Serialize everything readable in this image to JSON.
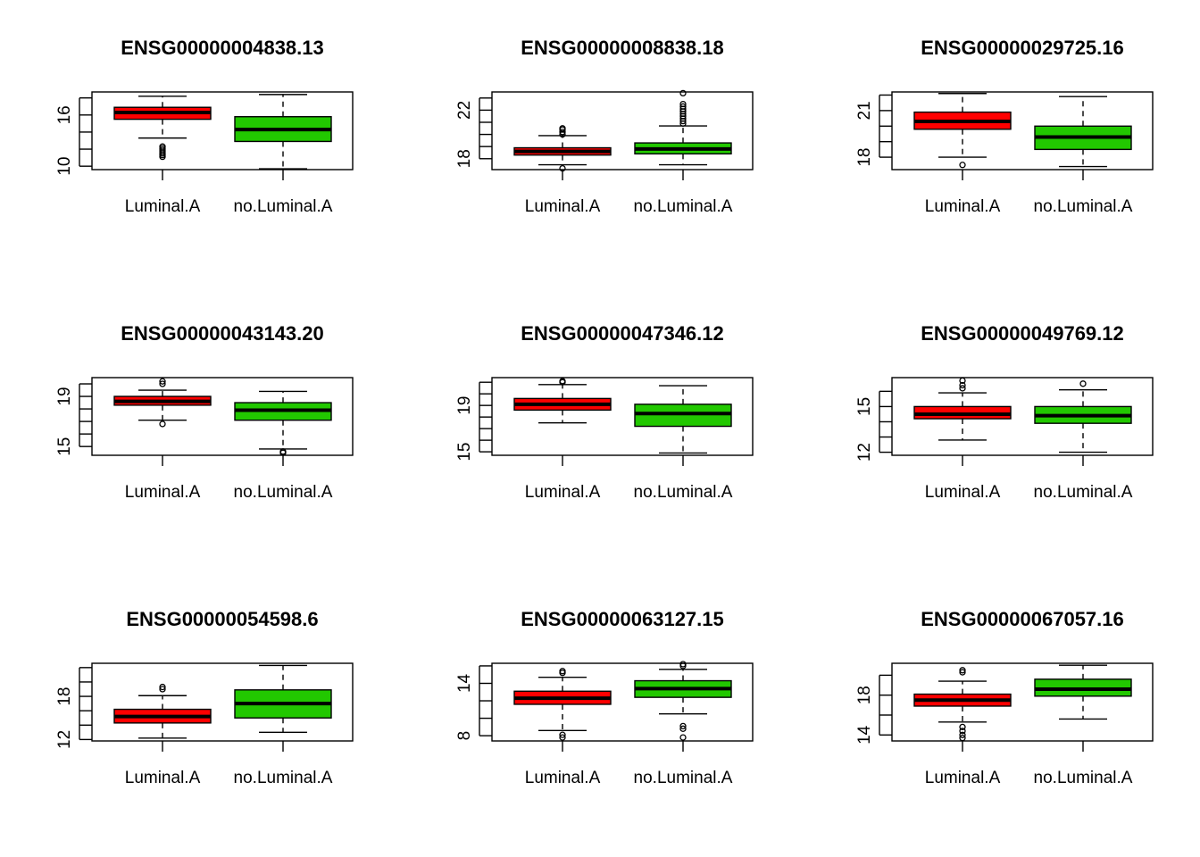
{
  "colors": {
    "Luminal.A": "#ff0000",
    "no.Luminal.A": "#22c800"
  },
  "chart_data": [
    {
      "type": "box",
      "title": "ENSG00000004838.13",
      "categories": [
        "Luminal.A",
        "no.Luminal.A"
      ],
      "yticks": [
        10,
        12,
        14,
        16,
        18
      ],
      "ytick_labels": [
        "10",
        "16"
      ],
      "ylim": [
        9.6,
        18.7
      ],
      "boxes": [
        {
          "name": "Luminal.A",
          "min": 13.3,
          "q1": 15.5,
          "median": 16.3,
          "q3": 16.9,
          "max": 18.2,
          "outliers": [
            11.1,
            11.3,
            11.5,
            11.7,
            11.9,
            12.1,
            12.3
          ]
        },
        {
          "name": "no.Luminal.A",
          "min": 9.7,
          "q1": 12.9,
          "median": 14.3,
          "q3": 15.8,
          "max": 18.4,
          "outliers": []
        }
      ]
    },
    {
      "type": "box",
      "title": "ENSG00000008838.18",
      "categories": [
        "Luminal.A",
        "no.Luminal.A"
      ],
      "yticks": [
        18,
        19,
        20,
        21,
        22,
        23
      ],
      "ytick_labels": [
        "18",
        "22"
      ],
      "ylim": [
        17.1,
        23.5
      ],
      "boxes": [
        {
          "name": "Luminal.A",
          "min": 17.5,
          "q1": 18.3,
          "median": 18.6,
          "q3": 18.9,
          "max": 19.9,
          "outliers": [
            17.2,
            20.0,
            20.2,
            20.4,
            20.5
          ]
        },
        {
          "name": "no.Luminal.A",
          "min": 17.5,
          "q1": 18.4,
          "median": 18.8,
          "q3": 19.3,
          "max": 20.7,
          "outliers": [
            20.9,
            21.1,
            21.3,
            21.5,
            21.7,
            21.9,
            22.1,
            22.3,
            22.5,
            23.4
          ]
        }
      ]
    },
    {
      "type": "box",
      "title": "ENSG00000029725.16",
      "categories": [
        "Luminal.A",
        "no.Luminal.A"
      ],
      "yticks": [
        18,
        19,
        20,
        21,
        22
      ],
      "ytick_labels": [
        "18",
        "21"
      ],
      "ylim": [
        17.2,
        22.2
      ],
      "boxes": [
        {
          "name": "Luminal.A",
          "min": 18.0,
          "q1": 19.8,
          "median": 20.3,
          "q3": 20.9,
          "max": 22.1,
          "outliers": [
            17.5
          ]
        },
        {
          "name": "no.Luminal.A",
          "min": 17.4,
          "q1": 18.5,
          "median": 19.3,
          "q3": 20.0,
          "max": 21.9,
          "outliers": []
        }
      ]
    },
    {
      "type": "box",
      "title": "ENSG00000043143.20",
      "categories": [
        "Luminal.A",
        "no.Luminal.A"
      ],
      "yticks": [
        15,
        16,
        17,
        18,
        19,
        20
      ],
      "ytick_labels": [
        "15",
        "19"
      ],
      "ylim": [
        14.3,
        20.5
      ],
      "boxes": [
        {
          "name": "Luminal.A",
          "min": 17.1,
          "q1": 18.3,
          "median": 18.6,
          "q3": 19.0,
          "max": 19.5,
          "outliers": [
            16.8,
            20.0,
            20.2
          ]
        },
        {
          "name": "no.Luminal.A",
          "min": 14.8,
          "q1": 17.1,
          "median": 17.9,
          "q3": 18.5,
          "max": 19.4,
          "outliers": [
            14.5,
            14.6
          ]
        }
      ]
    },
    {
      "type": "box",
      "title": "ENSG00000047346.12",
      "categories": [
        "Luminal.A",
        "no.Luminal.A"
      ],
      "yticks": [
        15,
        16,
        17,
        18,
        19,
        20,
        21
      ],
      "ytick_labels": [
        "15",
        "19"
      ],
      "ylim": [
        14.7,
        21.4
      ],
      "boxes": [
        {
          "name": "Luminal.A",
          "min": 17.5,
          "q1": 18.6,
          "median": 19.1,
          "q3": 19.6,
          "max": 20.8,
          "outliers": [
            21.0,
            21.1
          ]
        },
        {
          "name": "no.Luminal.A",
          "min": 14.9,
          "q1": 17.2,
          "median": 18.3,
          "q3": 19.1,
          "max": 20.7,
          "outliers": []
        }
      ]
    },
    {
      "type": "box",
      "title": "ENSG00000049769.12",
      "categories": [
        "Luminal.A",
        "no.Luminal.A"
      ],
      "yticks": [
        12,
        13,
        14,
        15,
        16
      ],
      "ytick_labels": [
        "12",
        "15"
      ],
      "ylim": [
        11.8,
        16.9
      ],
      "boxes": [
        {
          "name": "Luminal.A",
          "min": 12.8,
          "q1": 14.2,
          "median": 14.5,
          "q3": 15.0,
          "max": 15.9,
          "outliers": [
            16.2,
            16.4,
            16.7
          ]
        },
        {
          "name": "no.Luminal.A",
          "min": 12.0,
          "q1": 13.9,
          "median": 14.4,
          "q3": 15.0,
          "max": 16.1,
          "outliers": [
            16.5
          ]
        }
      ]
    },
    {
      "type": "box",
      "title": "ENSG00000054598.6",
      "categories": [
        "Luminal.A",
        "no.Luminal.A"
      ],
      "yticks": [
        12,
        14,
        16,
        18,
        20,
        22
      ],
      "ytick_labels": [
        "12",
        "18"
      ],
      "ylim": [
        11.8,
        22.6
      ],
      "boxes": [
        {
          "name": "Luminal.A",
          "min": 12.2,
          "q1": 14.3,
          "median": 15.2,
          "q3": 16.2,
          "max": 18.1,
          "outliers": [
            19.0,
            19.3
          ]
        },
        {
          "name": "no.Luminal.A",
          "min": 13.0,
          "q1": 15.0,
          "median": 17.0,
          "q3": 18.9,
          "max": 22.3,
          "outliers": []
        }
      ]
    },
    {
      "type": "box",
      "title": "ENSG00000063127.15",
      "categories": [
        "Luminal.A",
        "no.Luminal.A"
      ],
      "yticks": [
        8,
        10,
        12,
        14,
        16
      ],
      "ytick_labels": [
        "8",
        "14"
      ],
      "ylim": [
        7.4,
        16.3
      ],
      "boxes": [
        {
          "name": "Luminal.A",
          "min": 8.6,
          "q1": 11.6,
          "median": 12.3,
          "q3": 13.1,
          "max": 14.7,
          "outliers": [
            7.8,
            8.1,
            15.2,
            15.4
          ]
        },
        {
          "name": "no.Luminal.A",
          "min": 10.5,
          "q1": 12.4,
          "median": 13.4,
          "q3": 14.3,
          "max": 15.6,
          "outliers": [
            7.8,
            8.8,
            9.1,
            16.0,
            16.2
          ]
        }
      ]
    },
    {
      "type": "box",
      "title": "ENSG00000067057.16",
      "categories": [
        "Luminal.A",
        "no.Luminal.A"
      ],
      "yticks": [
        14,
        16,
        18,
        20
      ],
      "ytick_labels": [
        "14",
        "18"
      ],
      "ylim": [
        13.4,
        21.2
      ],
      "boxes": [
        {
          "name": "Luminal.A",
          "min": 15.3,
          "q1": 16.9,
          "median": 17.5,
          "q3": 18.1,
          "max": 19.4,
          "outliers": [
            13.7,
            14.0,
            14.4,
            14.8,
            20.3,
            20.5
          ]
        },
        {
          "name": "no.Luminal.A",
          "min": 15.6,
          "q1": 17.9,
          "median": 18.6,
          "q3": 19.6,
          "max": 21.0,
          "outliers": []
        }
      ]
    }
  ]
}
